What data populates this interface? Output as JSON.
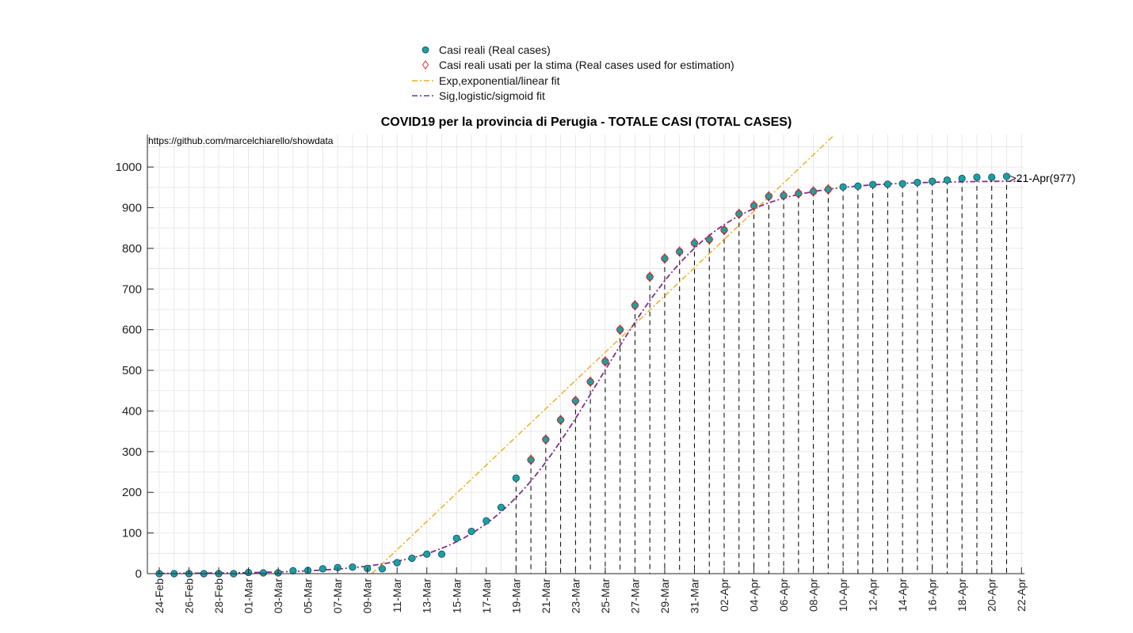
{
  "chart_data": {
    "type": "scatter",
    "title": "COVID19 per la provincia di Perugia - TOTALE CASI (TOTAL CASES)",
    "source_note": "https://github.com/marcelchiarello/showdata",
    "annotation": ">21-Apr(977)",
    "xlabel": "",
    "ylabel": "",
    "ylim": [
      0,
      1080
    ],
    "y_ticks": [
      0,
      100,
      200,
      300,
      400,
      500,
      600,
      700,
      800,
      900,
      1000
    ],
    "x_range_days": [
      -0.8,
      58.2
    ],
    "x_ticks": [
      {
        "day": 0,
        "label": "24-Feb"
      },
      {
        "day": 2,
        "label": "26-Feb"
      },
      {
        "day": 4,
        "label": "28-Feb"
      },
      {
        "day": 6,
        "label": "01-Mar"
      },
      {
        "day": 8,
        "label": "03-Mar"
      },
      {
        "day": 10,
        "label": "05-Mar"
      },
      {
        "day": 12,
        "label": "07-Mar"
      },
      {
        "day": 14,
        "label": "09-Mar"
      },
      {
        "day": 16,
        "label": "11-Mar"
      },
      {
        "day": 18,
        "label": "13-Mar"
      },
      {
        "day": 20,
        "label": "15-Mar"
      },
      {
        "day": 22,
        "label": "17-Mar"
      },
      {
        "day": 24,
        "label": "19-Mar"
      },
      {
        "day": 26,
        "label": "21-Mar"
      },
      {
        "day": 28,
        "label": "23-Mar"
      },
      {
        "day": 30,
        "label": "25-Mar"
      },
      {
        "day": 32,
        "label": "27-Mar"
      },
      {
        "day": 34,
        "label": "29-Mar"
      },
      {
        "day": 36,
        "label": "31-Mar"
      },
      {
        "day": 38,
        "label": "02-Apr"
      },
      {
        "day": 40,
        "label": "04-Apr"
      },
      {
        "day": 42,
        "label": "06-Apr"
      },
      {
        "day": 44,
        "label": "08-Apr"
      },
      {
        "day": 46,
        "label": "10-Apr"
      },
      {
        "day": 48,
        "label": "12-Apr"
      },
      {
        "day": 50,
        "label": "14-Apr"
      },
      {
        "day": 52,
        "label": "16-Apr"
      },
      {
        "day": 54,
        "label": "18-Apr"
      },
      {
        "day": 56,
        "label": "20-Apr"
      },
      {
        "day": 58,
        "label": "22-Apr"
      }
    ],
    "grid": true,
    "legend_position": "top-center",
    "colors": {
      "real": "#17a2a2",
      "real_edge": "#1f3f5f",
      "estimation": "#e0302a",
      "exp_fit": "#edb120",
      "sig_fit": "#7e2f8e"
    },
    "series": [
      {
        "name": "Casi reali (Real cases)",
        "marker": "circle",
        "values": [
          0,
          0,
          0,
          0,
          0,
          0,
          3,
          2,
          2,
          7,
          8,
          12,
          15,
          16,
          13,
          12,
          27,
          38,
          48,
          48,
          87,
          104,
          130,
          163,
          235,
          280,
          330,
          378,
          425,
          472,
          522,
          600,
          660,
          730,
          775,
          792,
          813,
          822,
          845,
          885,
          905,
          928,
          930,
          935,
          940,
          945,
          951,
          953,
          957,
          958,
          959,
          962,
          965,
          968,
          972,
          975,
          975,
          977
        ]
      },
      {
        "name": "Casi reali usati per la stima (Real cases used for estimation)",
        "marker": "diamond",
        "start_day": 25,
        "values": [
          280,
          330,
          378,
          425,
          472,
          522,
          600,
          660,
          730,
          775,
          792,
          813,
          822,
          845,
          885,
          905,
          928,
          930,
          935,
          940,
          945
        ]
      },
      {
        "name": "Exp,exponential/linear fit",
        "line": "dash-dot",
        "x": [
          14.3,
          45.3
        ],
        "values": [
          0,
          1075
        ]
      },
      {
        "name": "Sig,logistic/sigmoid fit",
        "line": "dash-dot",
        "logistic": {
          "K": 966,
          "r": 0.25,
          "t0": 29.7
        }
      }
    ],
    "drop_lines_from_day": 24
  }
}
